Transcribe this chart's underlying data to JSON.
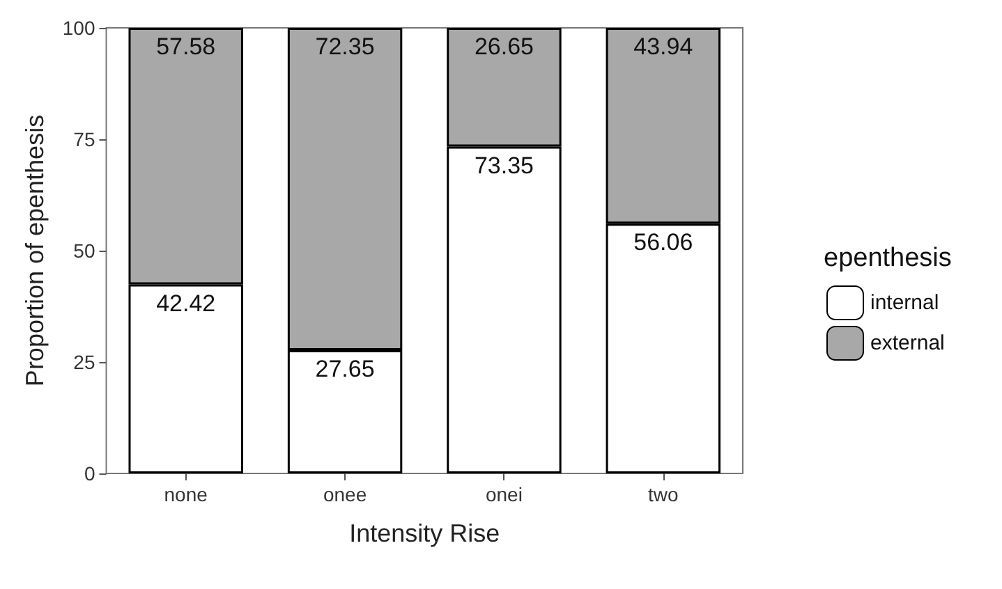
{
  "chart_data": {
    "type": "bar",
    "stacked": true,
    "xlabel": "Intensity Rise",
    "ylabel": "Proportion of epenthesis",
    "legend_title": "epenthesis",
    "legend": "right",
    "categories": [
      "none",
      "onee",
      "onei",
      "two"
    ],
    "series": [
      {
        "name": "internal",
        "color": "#ffffff",
        "values": [
          42.42,
          27.65,
          73.35,
          56.06
        ]
      },
      {
        "name": "external",
        "color": "#a8a8a8",
        "values": [
          57.58,
          72.35,
          26.65,
          43.94
        ]
      }
    ],
    "ylim": [
      0,
      100
    ],
    "yticks": [
      0,
      25,
      50,
      75,
      100
    ],
    "data_labels": true
  }
}
